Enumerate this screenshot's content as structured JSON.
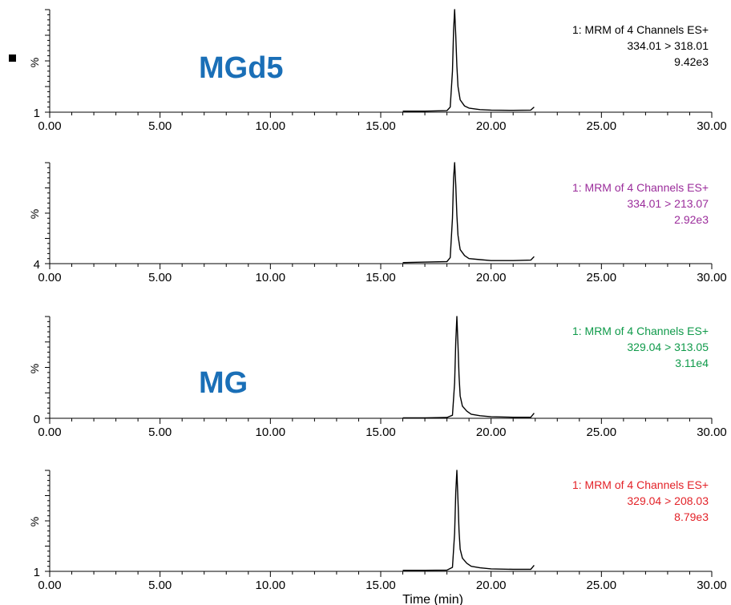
{
  "chart_data": [
    {
      "type": "line",
      "ylabel": "%",
      "y_axis_min_label": "1",
      "xlim": [
        0,
        30
      ],
      "x_ticks": [
        "0.00",
        "5.00",
        "10.00",
        "15.00",
        "20.00",
        "25.00",
        "30.00"
      ],
      "channel_lines": [
        "1: MRM of 4 Channels ES+",
        "334.01 > 318.01",
        "9.42e3"
      ],
      "channel_color": "#000000",
      "compound_label": "MGd5",
      "peak_rt": 18.35,
      "x": [
        16.0,
        17.0,
        18.0,
        18.15,
        18.25,
        18.3,
        18.35,
        18.4,
        18.45,
        18.5,
        18.6,
        18.8,
        19.0,
        19.5,
        20.0,
        21.0,
        21.8,
        21.95
      ],
      "y": [
        1,
        1,
        1.5,
        5,
        40,
        80,
        100,
        75,
        45,
        25,
        12,
        6,
        4,
        2.5,
        2,
        1.8,
        2,
        5
      ]
    },
    {
      "type": "line",
      "ylabel": "%",
      "y_axis_min_label": "4",
      "xlim": [
        0,
        30
      ],
      "x_ticks": [
        "0.00",
        "5.00",
        "10.00",
        "15.00",
        "20.00",
        "25.00",
        "30.00"
      ],
      "channel_lines": [
        "1: MRM of 4 Channels ES+",
        "334.01 > 213.07",
        "2.92e3"
      ],
      "channel_color": "#9b2d9b",
      "compound_label": "",
      "peak_rt": 18.35,
      "x": [
        16.0,
        17.0,
        18.0,
        18.15,
        18.25,
        18.3,
        18.35,
        18.4,
        18.45,
        18.5,
        18.6,
        18.8,
        19.0,
        19.5,
        20.0,
        21.0,
        21.8,
        21.95
      ],
      "y": [
        1,
        1.5,
        2,
        6,
        45,
        85,
        100,
        78,
        48,
        28,
        14,
        8,
        5,
        4,
        3,
        3,
        3.5,
        7
      ]
    },
    {
      "type": "line",
      "ylabel": "%",
      "y_axis_min_label": "0",
      "xlim": [
        0,
        30
      ],
      "x_ticks": [
        "0.00",
        "5.00",
        "10.00",
        "15.00",
        "20.00",
        "25.00",
        "30.00"
      ],
      "channel_lines": [
        "1: MRM of 4 Channels ES+",
        "329.04 > 313.05",
        "3.11e4"
      ],
      "channel_color": "#0f9a4a",
      "compound_label": "MG",
      "peak_rt": 18.45,
      "x": [
        16.0,
        17.0,
        18.0,
        18.25,
        18.35,
        18.4,
        18.45,
        18.5,
        18.55,
        18.6,
        18.7,
        18.9,
        19.1,
        19.5,
        20.0,
        21.0,
        21.8,
        21.95
      ],
      "y": [
        0.5,
        0.5,
        0.8,
        3,
        35,
        75,
        100,
        72,
        42,
        22,
        12,
        7,
        4,
        2.5,
        1.5,
        1,
        1,
        5
      ]
    },
    {
      "type": "line",
      "ylabel": "%",
      "y_axis_min_label": "1",
      "xlim": [
        0,
        30
      ],
      "x_ticks": [
        "0.00",
        "5.00",
        "10.00",
        "15.00",
        "20.00",
        "25.00",
        "30.00"
      ],
      "channel_lines": [
        "1: MRM of 4 Channels ES+",
        "329.04 > 208.03",
        "8.79e3"
      ],
      "channel_color": "#e32228",
      "compound_label": "",
      "peak_rt": 18.45,
      "x": [
        16.0,
        17.0,
        18.0,
        18.25,
        18.35,
        18.4,
        18.45,
        18.5,
        18.55,
        18.6,
        18.7,
        18.9,
        19.1,
        19.5,
        20.0,
        21.0,
        21.8,
        21.95
      ],
      "y": [
        1,
        1,
        1.2,
        4,
        38,
        78,
        100,
        70,
        40,
        22,
        13,
        8,
        5,
        3.5,
        2.5,
        2,
        2,
        6
      ]
    }
  ],
  "xlabel": "Time (min)"
}
